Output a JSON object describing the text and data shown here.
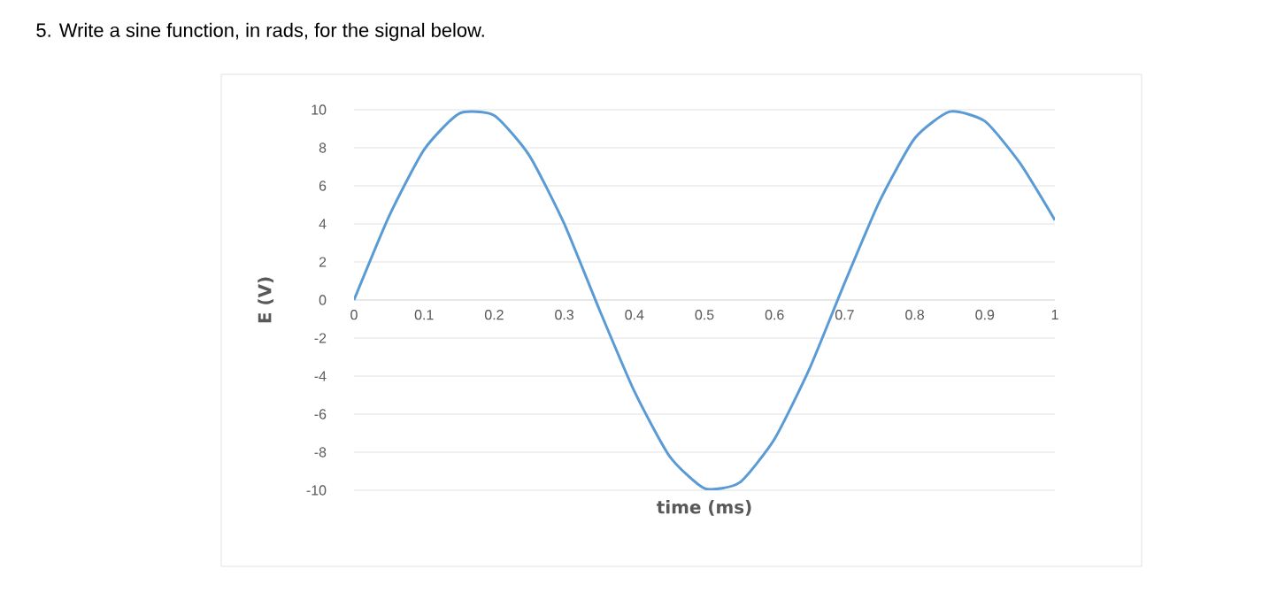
{
  "chart_data": {
    "type": "line",
    "title": "5.  Write a sine function, in rads, for the signal below.",
    "xlabel": "time (ms)",
    "ylabel": "E (V)",
    "x": [
      0,
      0.05,
      0.1,
      0.15,
      0.2,
      0.25,
      0.3,
      0.35,
      0.4,
      0.45,
      0.5,
      0.55,
      0.6,
      0.65,
      0.7,
      0.75,
      0.8,
      0.85,
      0.9,
      0.95,
      1.0
    ],
    "series": [
      {
        "color": "#5b9bd5",
        "values": [
          0,
          4.4,
          7.9,
          9.8,
          9.7,
          7.6,
          4.0,
          -0.5,
          -4.8,
          -8.2,
          -9.9,
          -9.6,
          -7.3,
          -3.6,
          0.9,
          5.2,
          8.5,
          9.9,
          9.4,
          7.2,
          4.2
        ]
      }
    ],
    "xlim": [
      0,
      1
    ],
    "xticks": [
      0,
      0.1,
      0.2,
      0.3,
      0.4,
      0.5,
      0.6,
      0.7,
      0.8,
      0.9,
      1
    ],
    "ylim": [
      -10,
      10
    ],
    "yticks": [
      -10,
      -8,
      -6,
      -4,
      -2,
      0,
      2,
      4,
      6,
      8,
      10
    ],
    "grid": "y",
    "marker": "none",
    "line_style": "solid"
  }
}
